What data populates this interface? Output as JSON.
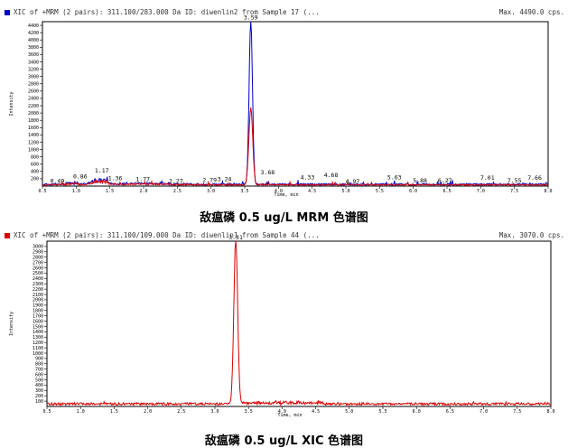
{
  "chart_data": [
    {
      "type": "line",
      "header": "XIC of +MRM (2 pairs): 311.100/283.000 Da ID: diwenlin2 from Sample 17 (...",
      "max_label": "Max. 4490.0 cps.",
      "title": "敌瘟磷 0.5 ug/L MRM 色谱图",
      "xlabel": "Time, min",
      "ylabel": "Intensity",
      "xlim": [
        0.5,
        8.0
      ],
      "ylim": [
        0,
        4500
      ],
      "yticks": [
        200,
        400,
        600,
        800,
        1000,
        1200,
        1400,
        1600,
        1800,
        2000,
        2200,
        2400,
        2600,
        2800,
        3000,
        3200,
        3400,
        3600,
        3800,
        4000,
        4200,
        4400
      ],
      "xticks": [
        0.5,
        1.0,
        1.5,
        2.0,
        2.5,
        3.0,
        3.5,
        4.0,
        4.5,
        5.0,
        5.5,
        6.0,
        6.5,
        7.0,
        7.5,
        8.0
      ],
      "xtick_labels": [
        "0.5",
        "1.0",
        "1.5",
        "2.0",
        "2.5",
        "3.0",
        "3.5",
        "4.0",
        "4.5",
        "5.0",
        "5.5",
        "6.0",
        "6.5",
        "7.0",
        "7.5",
        "8.0"
      ],
      "series": [
        {
          "color": "#0000cc",
          "peak": {
            "x": 3.59,
            "y": 4490,
            "width": 0.035
          }
        },
        {
          "color": "#dd0000",
          "peak": {
            "x": 3.59,
            "y": 2100,
            "width": 0.04
          }
        }
      ],
      "annotations": [
        {
          "text": "0.49",
          "x": 0.72,
          "y": 60
        },
        {
          "text": "0.86",
          "x": 1.06,
          "y": 180
        },
        {
          "text": "1.17",
          "x": 1.38,
          "y": 350
        },
        {
          "text": "1.36",
          "x": 1.58,
          "y": 140
        },
        {
          "text": "1.77",
          "x": 1.99,
          "y": 110
        },
        {
          "text": "2.27",
          "x": 2.48,
          "y": 60
        },
        {
          "text": "2.79",
          "x": 2.98,
          "y": 90
        },
        {
          "text": "3.24",
          "x": 3.2,
          "y": 110
        },
        {
          "text": "3.59",
          "x": 3.59,
          "y": 4540
        },
        {
          "text": "3.68",
          "x": 3.84,
          "y": 300
        },
        {
          "text": "4.33",
          "x": 4.43,
          "y": 160
        },
        {
          "text": "4.68",
          "x": 4.78,
          "y": 220
        },
        {
          "text": "4.97",
          "x": 5.1,
          "y": 50
        },
        {
          "text": "5.63",
          "x": 5.72,
          "y": 160
        },
        {
          "text": "5.88",
          "x": 6.1,
          "y": 80
        },
        {
          "text": "6.27",
          "x": 6.47,
          "y": 80
        },
        {
          "text": "7.01",
          "x": 7.1,
          "y": 150
        },
        {
          "text": "7.55",
          "x": 7.5,
          "y": 80
        },
        {
          "text": "7.66",
          "x": 7.8,
          "y": 150
        }
      ]
    },
    {
      "type": "line",
      "header": "XIC of +MRM (2 pairs): 311.100/109.000 Da ID: diwenlin1 from Sample 44 (...",
      "max_label": "Max. 3070.0 cps.",
      "title": "敌瘟磷 0.5 ug/L XIC 色谱图",
      "xlabel": "Time, min",
      "ylabel": "Intensity",
      "xlim": [
        0.5,
        8.0
      ],
      "ylim": [
        0,
        3100
      ],
      "yticks": [
        100,
        200,
        300,
        400,
        500,
        600,
        700,
        800,
        900,
        1000,
        1100,
        1200,
        1300,
        1400,
        1500,
        1600,
        1700,
        1800,
        1900,
        2000,
        2100,
        2200,
        2300,
        2400,
        2500,
        2600,
        2700,
        2800,
        2900,
        3000
      ],
      "xticks": [
        0.5,
        1.0,
        1.5,
        2.0,
        2.5,
        3.0,
        3.5,
        4.0,
        4.5,
        5.0,
        5.5,
        6.0,
        6.5,
        7.0,
        7.5,
        8.0
      ],
      "xtick_labels": [
        "0.5",
        "1.0",
        "1.5",
        "2.0",
        "2.5",
        "3.0",
        "3.5",
        "4.0",
        "4.5",
        "5.0",
        "5.5",
        "6.0",
        "6.5",
        "7.0",
        "7.5",
        "8.0"
      ],
      "series": [
        {
          "color": "#dd0000",
          "peak": {
            "x": 3.31,
            "y": 3070,
            "width": 0.04
          }
        }
      ],
      "annotations": [
        {
          "text": "3.31",
          "x": 3.31,
          "y": 3120
        }
      ]
    }
  ]
}
